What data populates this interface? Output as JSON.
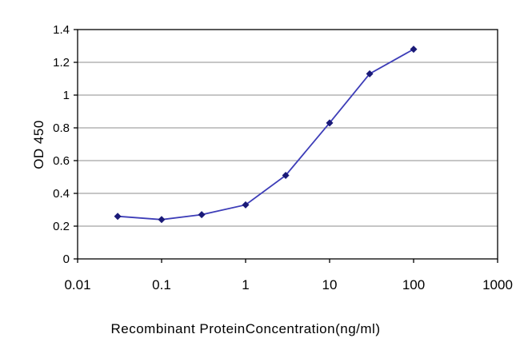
{
  "chart_data": {
    "type": "line",
    "title": "",
    "xlabel": "Recombinant ProteinConcentration(ng/ml)",
    "ylabel": "OD 450",
    "x_scale": "log",
    "xlim": [
      0.01,
      1000
    ],
    "ylim": [
      0,
      1.4
    ],
    "x": [
      0.03,
      0.1,
      0.3,
      1,
      3,
      10,
      30,
      100
    ],
    "series": [
      {
        "name": "OD 450",
        "values": [
          0.26,
          0.24,
          0.27,
          0.33,
          0.51,
          0.83,
          1.13,
          1.28
        ]
      }
    ],
    "x_ticks": [
      0.01,
      0.1,
      1,
      10,
      100,
      1000
    ],
    "x_tick_labels": [
      "0.01",
      "0.1",
      "1",
      "10",
      "100",
      "1000"
    ],
    "y_ticks": [
      0,
      0.2,
      0.4,
      0.6,
      0.8,
      1,
      1.2,
      1.4
    ],
    "y_tick_labels": [
      "0",
      "0.2",
      "0.4",
      "0.6",
      "0.8",
      "1",
      "1.2",
      "1.4"
    ],
    "grid": "horizontal",
    "legend": "none",
    "marker": "diamond",
    "colors": {
      "line": "#3d3db8",
      "marker": "#1a1a78",
      "grid": "#8c8c8c",
      "axis": "#000000",
      "background": "#ffffff"
    }
  }
}
